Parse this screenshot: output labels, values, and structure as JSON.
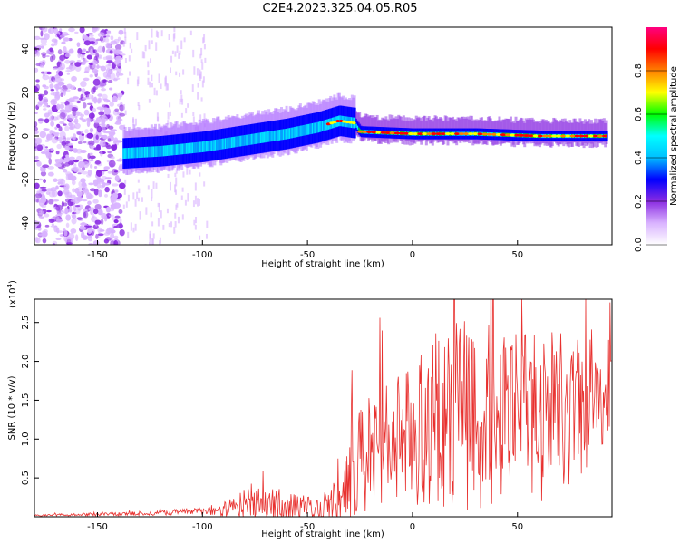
{
  "title": "C2E4.2023.325.04.05.R05",
  "chart_data": [
    {
      "type": "heatmap",
      "xlabel": "Height of straight line (km)",
      "ylabel": "Frequency (Hz)",
      "xlim": [
        -180,
        95
      ],
      "ylim": [
        -50,
        50
      ],
      "xticks": [
        -150,
        -100,
        -50,
        0,
        50
      ],
      "yticks": [
        -40,
        -20,
        0,
        20,
        40
      ],
      "ridge": {
        "x": [
          -138,
          -120,
          -100,
          -80,
          -60,
          -45,
          -35,
          -28,
          -25,
          0,
          30,
          60,
          92
        ],
        "freq_hz": [
          -8,
          -7,
          -5,
          -2,
          1,
          4,
          7,
          6,
          2,
          1,
          1,
          0,
          0
        ]
      },
      "colorbar": {
        "label": "Normalized spectral amplitude",
        "range": [
          0.0,
          1.0
        ],
        "ticks": [
          "0.0",
          "0.2",
          "0.4",
          "0.6",
          "0.8"
        ],
        "colors": [
          "#ffffff",
          "#d9b3ff",
          "#8a2be2",
          "#0000ff",
          "#00bfff",
          "#00ffff",
          "#00ff00",
          "#ffff00",
          "#ff8000",
          "#ff0000",
          "#ff0080"
        ]
      }
    },
    {
      "type": "line",
      "xlabel": "Height of straight line (km)",
      "ylabel": "SNR (10 * v/v)",
      "y_scale_note": "(x10",
      "y_scale_exp": "4",
      "xlim": [
        -180,
        95
      ],
      "ylim": [
        0,
        2.8
      ],
      "xticks": [
        -150,
        -100,
        -50,
        0,
        50
      ],
      "yticks": [
        0.5,
        1.0,
        1.5,
        2.0,
        2.5
      ],
      "line_color": "#e8312f",
      "envelope": {
        "x": [
          -180,
          -150,
          -120,
          -100,
          -90,
          -80,
          -70,
          -60,
          -50,
          -45,
          -35,
          -30,
          -25,
          -20,
          -10,
          0,
          10,
          20,
          30,
          40,
          50,
          60,
          70,
          80,
          90,
          95
        ],
        "mean": [
          0.02,
          0.03,
          0.05,
          0.08,
          0.1,
          0.15,
          0.18,
          0.15,
          0.12,
          0.1,
          0.25,
          0.5,
          0.7,
          0.9,
          1.0,
          1.05,
          1.2,
          1.35,
          1.35,
          1.3,
          1.25,
          1.25,
          1.3,
          1.35,
          1.5,
          1.6
        ],
        "spread": [
          0.01,
          0.02,
          0.03,
          0.05,
          0.1,
          0.2,
          0.2,
          0.18,
          0.15,
          0.12,
          0.3,
          0.6,
          0.7,
          0.8,
          0.8,
          0.9,
          1.1,
          1.3,
          1.3,
          1.2,
          1.1,
          1.1,
          1.1,
          1.0,
          0.7,
          0.5
        ]
      }
    }
  ]
}
